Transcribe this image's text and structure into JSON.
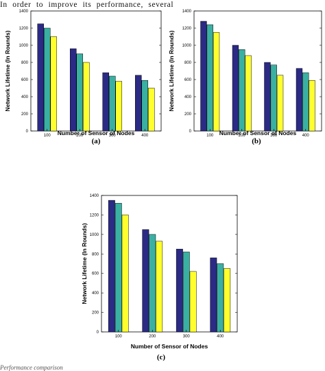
{
  "page": {
    "top_text": "In order to improve its performance, several",
    "bottom_text": "Performance comparison"
  },
  "colors": {
    "series_1": "#2B2A85",
    "series_2": "#3AB0A2",
    "series_3": "#FFFF2E"
  },
  "chart_data": [
    {
      "type": "bar",
      "caption": "(a)",
      "xlabel": "Number of Sensor of Nodes",
      "ylabel": "Network Lifetime (In Rounds)",
      "ylim": [
        0,
        1400
      ],
      "yticks": [
        0,
        200,
        400,
        600,
        800,
        1000,
        1200,
        1400
      ],
      "categories": [
        "100",
        "200",
        "300",
        "400"
      ],
      "series": [
        {
          "values": [
            1250,
            960,
            680,
            650
          ]
        },
        {
          "values": [
            1200,
            900,
            640,
            590
          ]
        },
        {
          "values": [
            1100,
            800,
            580,
            500
          ]
        }
      ]
    },
    {
      "type": "bar",
      "caption": "(b)",
      "xlabel": "Number of Sensor of Nodes",
      "ylabel": "Network Lifetime (In Rounds)",
      "ylim": [
        0,
        1400
      ],
      "yticks": [
        0,
        200,
        400,
        600,
        800,
        1000,
        1200,
        1400
      ],
      "categories": [
        "100",
        "200",
        "300",
        "400"
      ],
      "series": [
        {
          "values": [
            1280,
            1000,
            800,
            730
          ]
        },
        {
          "values": [
            1240,
            950,
            770,
            680
          ]
        },
        {
          "values": [
            1150,
            880,
            650,
            590
          ]
        }
      ]
    },
    {
      "type": "bar",
      "caption": "(c)",
      "xlabel": "Number of Sensor of Nodes",
      "ylabel": "Network Lifetime (In Rounds)",
      "ylim": [
        0,
        1400
      ],
      "yticks": [
        0,
        200,
        400,
        600,
        800,
        1000,
        1200,
        1400
      ],
      "categories": [
        "100",
        "200",
        "300",
        "400"
      ],
      "series": [
        {
          "values": [
            1350,
            1050,
            850,
            760
          ]
        },
        {
          "values": [
            1320,
            1000,
            820,
            700
          ]
        },
        {
          "values": [
            1200,
            930,
            620,
            650
          ]
        }
      ]
    }
  ]
}
